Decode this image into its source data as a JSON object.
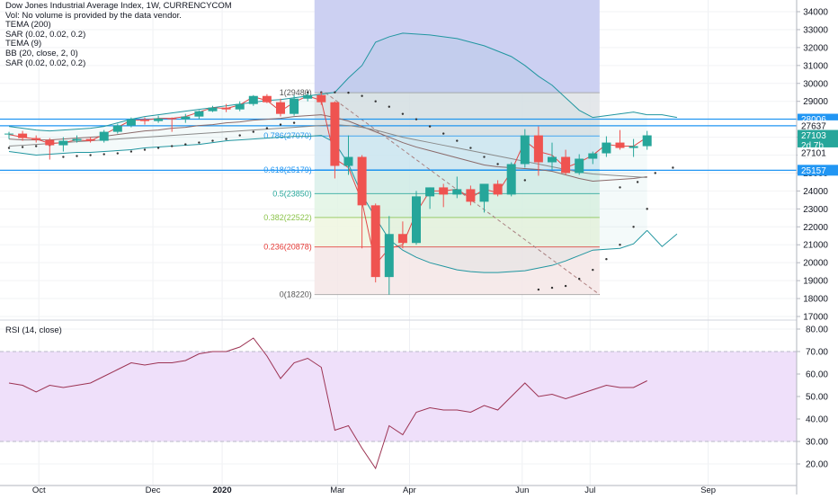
{
  "header": {
    "title": "Dow Jones Industrial Average Index, 1W, CURRENCYCOM",
    "vol_note": "Vol: No volume is provided by the data vendor.",
    "indicators": [
      "TEMA (200)",
      "SAR (0.02, 0.02, 0.2)",
      "TEMA (9)",
      "BB (20, close, 2, 0)",
      "SAR (0.02, 0.02, 0.2)"
    ]
  },
  "rsi_title": "RSI (14, close)",
  "colors": {
    "up": "#26a69a",
    "down": "#ef5350",
    "bb": "#2196a0",
    "tema200": "#8a8a8a",
    "tema9": "#e04848",
    "fib_line": "#2196f3",
    "rsi_line": "#9c3353",
    "rsi_band": "#efe0fa",
    "blue_box": "#c9cdf1"
  },
  "chart_data": [
    {
      "type": "candlestick",
      "title": "Dow Jones Industrial Average Index, 1W, CURRENCYCOM",
      "ylim": [
        17000,
        34500
      ],
      "y_ticks": [
        17000,
        18000,
        19000,
        20000,
        21000,
        22000,
        23000,
        24000,
        25000,
        26000,
        27000,
        28000,
        29000,
        30000,
        31000,
        32000,
        33000,
        34000
      ],
      "x_labels": [
        "Oct",
        "Dec",
        "2020",
        "Mar",
        "Apr",
        "Jun",
        "Jul",
        "Sep"
      ],
      "candles": [
        {
          "week": "2019-09-09",
          "open": 27150,
          "high": 27300,
          "low": 26900,
          "close": 27200
        },
        {
          "week": "2019-09-16",
          "open": 27200,
          "high": 27350,
          "low": 26800,
          "close": 26950
        },
        {
          "week": "2019-09-23",
          "open": 26950,
          "high": 27100,
          "low": 26700,
          "close": 26850
        },
        {
          "week": "2019-09-30",
          "open": 26850,
          "high": 26950,
          "low": 25750,
          "close": 26550
        },
        {
          "week": "2019-10-07",
          "open": 26550,
          "high": 27000,
          "low": 26200,
          "close": 26800
        },
        {
          "week": "2019-10-14",
          "open": 26800,
          "high": 27100,
          "low": 26700,
          "close": 26900
        },
        {
          "week": "2019-10-21",
          "open": 26900,
          "high": 27000,
          "low": 26700,
          "close": 26800
        },
        {
          "week": "2019-10-28",
          "open": 26800,
          "high": 27400,
          "low": 26700,
          "close": 27300
        },
        {
          "week": "2019-11-04",
          "open": 27300,
          "high": 27750,
          "low": 27200,
          "close": 27650
        },
        {
          "week": "2019-11-11",
          "open": 27650,
          "high": 28100,
          "low": 27550,
          "close": 28000
        },
        {
          "week": "2019-11-18",
          "open": 28000,
          "high": 28100,
          "low": 27700,
          "close": 27900
        },
        {
          "week": "2019-11-25",
          "open": 27900,
          "high": 28200,
          "low": 27800,
          "close": 28050
        },
        {
          "week": "2019-12-02",
          "open": 28050,
          "high": 28100,
          "low": 27300,
          "close": 28000
        },
        {
          "week": "2019-12-09",
          "open": 28000,
          "high": 28300,
          "low": 27800,
          "close": 28150
        },
        {
          "week": "2019-12-16",
          "open": 28150,
          "high": 28500,
          "low": 28000,
          "close": 28450
        },
        {
          "week": "2019-12-23",
          "open": 28450,
          "high": 28750,
          "low": 28400,
          "close": 28650
        },
        {
          "week": "2019-12-30",
          "open": 28650,
          "high": 28850,
          "low": 28400,
          "close": 28550
        },
        {
          "week": "2020-01-06",
          "open": 28550,
          "high": 29000,
          "low": 28450,
          "close": 28850
        },
        {
          "week": "2020-01-13",
          "open": 28850,
          "high": 29350,
          "low": 28750,
          "close": 29300
        },
        {
          "week": "2020-01-20",
          "open": 29300,
          "high": 29400,
          "low": 28900,
          "close": 28950
        },
        {
          "week": "2020-01-27",
          "open": 28950,
          "high": 29150,
          "low": 28150,
          "close": 28300
        },
        {
          "week": "2020-02-03",
          "open": 28300,
          "high": 29350,
          "low": 28200,
          "close": 29150
        },
        {
          "week": "2020-02-10",
          "open": 29150,
          "high": 29450,
          "low": 29000,
          "close": 29350
        },
        {
          "week": "2020-02-17",
          "open": 29350,
          "high": 29500,
          "low": 28800,
          "close": 28950
        },
        {
          "week": "2020-02-24",
          "open": 28950,
          "high": 29000,
          "low": 24700,
          "close": 25400
        },
        {
          "week": "2020-03-02",
          "open": 25400,
          "high": 27100,
          "low": 24900,
          "close": 25900
        },
        {
          "week": "2020-03-09",
          "open": 25900,
          "high": 26000,
          "low": 20800,
          "close": 23200
        },
        {
          "week": "2020-03-16",
          "open": 23200,
          "high": 23300,
          "low": 18900,
          "close": 19200
        },
        {
          "week": "2020-03-23",
          "open": 19200,
          "high": 22600,
          "low": 18220,
          "close": 21600
        },
        {
          "week": "2020-03-30",
          "open": 21600,
          "high": 22300,
          "low": 20800,
          "close": 21100
        },
        {
          "week": "2020-04-06",
          "open": 21100,
          "high": 24000,
          "low": 21000,
          "close": 23700
        },
        {
          "week": "2020-04-13",
          "open": 23700,
          "high": 24200,
          "low": 23000,
          "close": 24200
        },
        {
          "week": "2020-04-20",
          "open": 24200,
          "high": 24400,
          "low": 23100,
          "close": 23800
        },
        {
          "week": "2020-04-27",
          "open": 23800,
          "high": 24800,
          "low": 23600,
          "close": 24100
        },
        {
          "week": "2020-05-04",
          "open": 24100,
          "high": 24300,
          "low": 23200,
          "close": 23400
        },
        {
          "week": "2020-05-11",
          "open": 23400,
          "high": 24300,
          "low": 22800,
          "close": 24400
        },
        {
          "week": "2020-05-18",
          "open": 24400,
          "high": 24600,
          "low": 23700,
          "close": 23800
        },
        {
          "week": "2020-05-25",
          "open": 23800,
          "high": 25600,
          "low": 23700,
          "close": 25500
        },
        {
          "week": "2020-06-01",
          "open": 25500,
          "high": 27450,
          "low": 25300,
          "close": 27100
        },
        {
          "week": "2020-06-08",
          "open": 27100,
          "high": 27600,
          "low": 24850,
          "close": 25600
        },
        {
          "week": "2020-06-15",
          "open": 25600,
          "high": 26700,
          "low": 25200,
          "close": 25900
        },
        {
          "week": "2020-06-22",
          "open": 25900,
          "high": 26300,
          "low": 24900,
          "close": 25000
        },
        {
          "week": "2020-06-29",
          "open": 25000,
          "high": 26050,
          "low": 24900,
          "close": 25800
        },
        {
          "week": "2020-07-06",
          "open": 25800,
          "high": 26200,
          "low": 25500,
          "close": 26100
        },
        {
          "week": "2020-07-13",
          "open": 26100,
          "high": 27050,
          "low": 25900,
          "close": 26700
        },
        {
          "week": "2020-07-20",
          "open": 26700,
          "high": 27400,
          "low": 26300,
          "close": 26400
        },
        {
          "week": "2020-07-27",
          "open": 26400,
          "high": 26900,
          "low": 25900,
          "close": 26500
        },
        {
          "week": "2020-08-03",
          "open": 26500,
          "high": 27350,
          "low": 26300,
          "close": 27103
        }
      ],
      "fibonacci": [
        {
          "ratio": 1,
          "label": "1(29480)",
          "price": 29480
        },
        {
          "ratio": 0.786,
          "label": "0.786(27070)",
          "price": 27070
        },
        {
          "ratio": 0.618,
          "label": "0.618(25179)",
          "price": 25179
        },
        {
          "ratio": 0.5,
          "label": "0.5(23850)",
          "price": 23850
        },
        {
          "ratio": 0.382,
          "label": "0.382(22522)",
          "price": 22522
        },
        {
          "ratio": 0.236,
          "label": "0.236(20878)",
          "price": 20878
        },
        {
          "ratio": 0,
          "label": "0(18220)",
          "price": 18220
        }
      ],
      "horizontal_lines": [
        28006,
        27637,
        25157
      ],
      "price_tags": [
        {
          "text": "28006",
          "price": 28006,
          "style": "line"
        },
        {
          "text": "27637",
          "price": 27637,
          "style": "plain"
        },
        {
          "text": "27103",
          "price": 27103,
          "style": "line"
        },
        {
          "text": "2d 7h",
          "price": 26560,
          "style": "timer"
        },
        {
          "text": "27101",
          "price": 26130,
          "style": "plain"
        },
        {
          "text": "25157",
          "price": 25157,
          "style": "line"
        }
      ],
      "bb_upper": [
        27600,
        27500,
        27400,
        27350,
        27400,
        27450,
        27500,
        27600,
        27800,
        28000,
        28150,
        28250,
        28350,
        28450,
        28550,
        28650,
        28750,
        28850,
        28950,
        29050,
        29100,
        29200,
        29300,
        29400,
        29500,
        30300,
        31000,
        32300,
        32600,
        32800,
        32750,
        32700,
        32600,
        32500,
        32300,
        32100,
        31800,
        31500,
        31000,
        30400,
        29900,
        29200,
        28500,
        28100,
        28200,
        28300,
        28400,
        28250
      ],
      "bb_middle": [
        26900,
        26850,
        26850,
        26850,
        26900,
        26950,
        27000,
        27050,
        27150,
        27250,
        27350,
        27400,
        27500,
        27550,
        27650,
        27700,
        27800,
        27850,
        27950,
        28000,
        28050,
        28150,
        28200,
        28250,
        28100,
        27900,
        27600,
        27300,
        27000,
        26700,
        26450,
        26250,
        26050,
        25850,
        25650,
        25450,
        25350,
        25300,
        25250,
        25200,
        25100,
        24900,
        24700,
        24550,
        24600,
        24650,
        24700,
        24800
      ],
      "bb_lower": [
        26200,
        26100,
        26000,
        26050,
        26100,
        26150,
        26150,
        26200,
        26250,
        26300,
        26400,
        26450,
        26500,
        26550,
        26600,
        26700,
        26800,
        26850,
        26900,
        26950,
        27000,
        27050,
        27050,
        27100,
        26700,
        25500,
        23800,
        22500,
        21300,
        20700,
        20300,
        20000,
        19800,
        19600,
        19500,
        19450,
        19450,
        19500,
        19550,
        19700,
        19850,
        20100,
        20400,
        20700,
        20750,
        20800,
        21050,
        21800
      ],
      "tema9": [
        27150,
        27000,
        26900,
        26650,
        26700,
        26850,
        26800,
        27150,
        27550,
        27950,
        27950,
        28050,
        28050,
        28150,
        28400,
        28650,
        28600,
        28800,
        29250,
        29050,
        28450,
        28950,
        29300,
        29050,
        25800,
        25300,
        23400,
        19900,
        20800,
        21000,
        22800,
        24000,
        24000,
        24100,
        23600,
        24100,
        23900,
        25100,
        26800,
        26200,
        26000,
        25300,
        25600,
        26000,
        26600,
        26500,
        26500,
        27000
      ],
      "tema200": [
        26500,
        26550,
        26600,
        26650,
        26700,
        26750,
        26800,
        26850,
        26900,
        26950,
        27000,
        27050,
        27100,
        27150,
        27200,
        27250,
        27300,
        27350,
        27400,
        27450,
        27500,
        27550,
        27600,
        27650,
        27700,
        27650,
        27550,
        27400,
        27200,
        27000,
        26850,
        26700,
        26550,
        26400,
        26250,
        26100,
        25950,
        25800,
        25650,
        25500,
        25350,
        25200,
        25050,
        24950,
        24900,
        24850,
        24800,
        24750
      ],
      "sar": [
        26400,
        26450,
        26500,
        26550,
        25900,
        25950,
        26000,
        26050,
        26100,
        26200,
        26300,
        26400,
        26500,
        26600,
        26700,
        26800,
        26900,
        27100,
        27300,
        27500,
        27700,
        27800,
        29500,
        29500,
        29500,
        29480,
        29300,
        29000,
        28700,
        28300,
        28000,
        27600,
        27200,
        26800,
        26400,
        25900,
        25500,
        25000,
        24600,
        18500,
        18600,
        18700,
        19100,
        19600,
        20200,
        21000,
        22000,
        23000
      ],
      "bb_extension": {
        "upper": [
          28250,
          28100
        ],
        "lower": [
          20900,
          21600
        ]
      },
      "sar_extension": [
        24200,
        24500,
        25000,
        25300
      ]
    },
    {
      "type": "line",
      "title": "RSI (14, close)",
      "ylim": [
        14,
        82
      ],
      "y_ticks": [
        20,
        30,
        40,
        50,
        60,
        70,
        80
      ],
      "bands": [
        30,
        70
      ],
      "series": [
        {
          "name": "RSI (14, close)",
          "values": [
            56,
            55,
            52,
            55,
            54,
            55,
            56,
            59,
            62,
            65,
            64,
            65,
            65,
            66,
            69,
            70,
            70,
            72,
            76,
            68,
            58,
            65,
            67,
            63,
            35,
            37,
            27,
            18,
            37,
            33,
            43,
            45,
            44,
            44,
            43,
            46,
            44,
            50,
            56,
            50,
            51,
            49,
            51,
            53,
            55,
            54,
            54,
            57
          ]
        }
      ]
    }
  ]
}
